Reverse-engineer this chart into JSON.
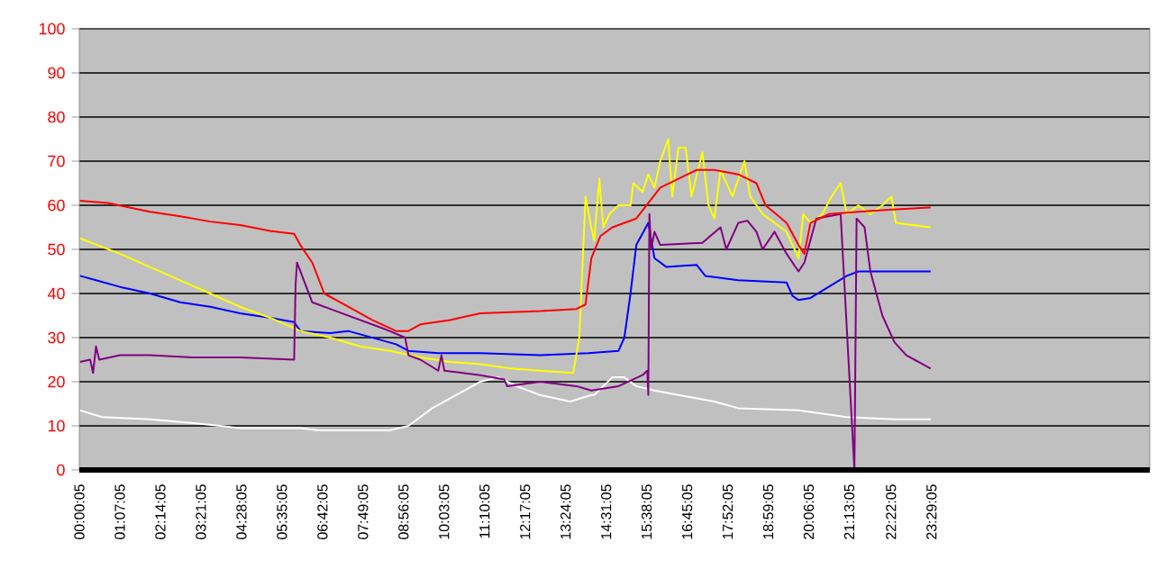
{
  "chart_data": {
    "type": "line",
    "xlim": [
      0,
      29.5
    ],
    "ylim": [
      0,
      100
    ],
    "yticks": [
      0,
      10,
      20,
      30,
      40,
      50,
      60,
      70,
      80,
      90,
      100
    ],
    "grid": "y",
    "marker": "none",
    "line_style": "solid",
    "xticks": [
      {
        "value": 0.0014,
        "label": "00:00:05"
      },
      {
        "value": 1.1181,
        "label": "01:07:05"
      },
      {
        "value": 2.2347,
        "label": "02:14:05"
      },
      {
        "value": 3.3514,
        "label": "03:21:05"
      },
      {
        "value": 4.4681,
        "label": "04:28:05"
      },
      {
        "value": 5.5847,
        "label": "05:35:05"
      },
      {
        "value": 6.7014,
        "label": "06:42:05"
      },
      {
        "value": 7.8181,
        "label": "07:49:05"
      },
      {
        "value": 8.9347,
        "label": "08:56:05"
      },
      {
        "value": 10.0514,
        "label": "10:03:05"
      },
      {
        "value": 11.1681,
        "label": "11:10:05"
      },
      {
        "value": 12.2847,
        "label": "12:17:05"
      },
      {
        "value": 13.4014,
        "label": "13:24:05"
      },
      {
        "value": 14.5181,
        "label": "14:31:05"
      },
      {
        "value": 15.6347,
        "label": "15:38:05"
      },
      {
        "value": 16.7514,
        "label": "16:45:05"
      },
      {
        "value": 17.8681,
        "label": "17:52:05"
      },
      {
        "value": 18.9847,
        "label": "18:59:05"
      },
      {
        "value": 20.1014,
        "label": "20:06:05"
      },
      {
        "value": 21.2181,
        "label": "21:13:05"
      },
      {
        "value": 22.3681,
        "label": "22:22:05"
      },
      {
        "value": 23.4847,
        "label": "23:29:05"
      }
    ],
    "series": [
      {
        "color": "#ffffff",
        "x": [
          0.02,
          0.63,
          1.95,
          3.28,
          4.43,
          6.09,
          6.58,
          8.57,
          9.07,
          9.73,
          10.39,
          11.05,
          11.55,
          12.04,
          12.7,
          13.53,
          14.11,
          14.19,
          14.69,
          15.02,
          15.35,
          15.85,
          16.51,
          17.5,
          18.16,
          19.82,
          21.15,
          22.46,
          23.46
        ],
        "values": [
          13.5,
          12,
          11.5,
          10.5,
          9.5,
          9.5,
          9,
          9,
          10,
          14,
          17,
          20,
          21,
          19,
          17,
          15.5,
          17,
          17,
          21,
          21,
          19,
          18,
          17,
          15.5,
          14,
          13.5,
          12,
          11.5,
          11.5
        ]
      },
      {
        "color": "#0000ff",
        "x": [
          0.02,
          0.46,
          1.12,
          1.95,
          2.78,
          3.61,
          4.43,
          5.26,
          5.92,
          6.09,
          6.91,
          7.41,
          8.07,
          8.73,
          9.07,
          9.89,
          11.05,
          12.7,
          14.03,
          14.86,
          15.02,
          15.19,
          15.35,
          15.68,
          15.85,
          16.18,
          17.01,
          17.25,
          18.16,
          19.49,
          19.65,
          19.82,
          20.15,
          20.65,
          21.15,
          21.47,
          23.46
        ],
        "values": [
          44,
          43,
          41.5,
          40,
          38,
          37,
          35.5,
          34.5,
          33.5,
          31.5,
          31,
          31.5,
          30,
          28.5,
          27,
          26.5,
          26.5,
          26,
          26.5,
          27,
          30,
          40,
          51,
          56,
          48,
          46,
          46.5,
          44,
          43,
          42.5,
          39.5,
          38.5,
          39,
          41.5,
          44,
          45,
          45
        ]
      },
      {
        "color": "#ffff00",
        "x": [
          0.02,
          1.12,
          1.95,
          2.78,
          3.61,
          4.43,
          5.26,
          6.09,
          6.91,
          7.74,
          8.57,
          9.4,
          10.22,
          11.05,
          11.88,
          12.7,
          13.61,
          13.78,
          13.95,
          14.11,
          14.19,
          14.33,
          14.44,
          14.61,
          14.86,
          15.19,
          15.27,
          15.52,
          15.68,
          15.85,
          16.01,
          16.23,
          16.34,
          16.51,
          16.71,
          16.87,
          17.17,
          17.34,
          17.5,
          17.67,
          18.0,
          18.33,
          18.49,
          18.83,
          19.16,
          19.49,
          19.82,
          19.95,
          20.15,
          20.48,
          20.73,
          20.98,
          21.15,
          21.47,
          21.8,
          22.13,
          22.38,
          22.5,
          23.46
        ],
        "values": [
          52.5,
          49,
          46,
          43,
          40,
          37,
          34.5,
          31.5,
          30,
          28,
          27,
          25.5,
          24.5,
          24,
          23,
          22.5,
          22,
          30,
          62,
          55,
          52,
          66,
          55,
          58,
          60,
          60,
          65,
          63,
          67,
          64,
          70,
          75,
          62,
          73,
          73,
          62,
          72,
          60,
          57,
          68,
          62,
          70,
          62,
          58,
          56,
          54,
          48,
          58,
          56,
          58,
          62,
          65,
          58,
          60,
          58,
          60,
          62,
          56,
          55
        ]
      },
      {
        "color": "#800080",
        "x": [
          0.02,
          0.3,
          0.38,
          0.46,
          0.55,
          1.12,
          1.95,
          3.11,
          4.43,
          5.92,
          5.96,
          6.0,
          6.42,
          7.08,
          7.74,
          8.4,
          8.98,
          9.07,
          9.4,
          9.89,
          9.98,
          10.06,
          11.05,
          11.71,
          11.79,
          12.7,
          13.7,
          14.11,
          14.86,
          15.52,
          15.65,
          15.68,
          15.71,
          15.76,
          15.85,
          16.01,
          17.17,
          17.67,
          17.83,
          18.16,
          18.41,
          18.66,
          18.83,
          19.16,
          19.49,
          19.82,
          19.98,
          20.31,
          20.98,
          21.36,
          21.42,
          21.64,
          21.8,
          22.13,
          22.46,
          22.79,
          23.46
        ],
        "values": [
          24.5,
          25,
          22,
          28,
          25,
          26,
          26,
          25.5,
          25.5,
          25,
          42,
          47,
          38,
          36,
          34,
          32,
          30,
          26,
          25,
          22.5,
          26,
          22.5,
          21.5,
          20.5,
          19,
          20,
          19,
          18,
          19,
          21.5,
          22.5,
          17,
          58,
          50,
          54,
          51,
          51.5,
          55,
          50,
          56,
          56.5,
          54,
          50,
          54,
          49,
          45,
          47,
          57,
          58,
          0,
          57,
          55,
          45,
          35,
          29,
          26,
          23
        ]
      },
      {
        "color": "#ff0000",
        "x": [
          0.02,
          0.79,
          1.95,
          2.78,
          3.61,
          4.43,
          5.26,
          5.92,
          6.09,
          6.42,
          6.75,
          7.41,
          8.07,
          8.73,
          9.07,
          9.4,
          10.22,
          11.05,
          12.7,
          13.7,
          13.95,
          14.11,
          14.36,
          14.69,
          15.35,
          15.68,
          16.01,
          16.51,
          17.01,
          17.5,
          18.16,
          18.66,
          18.91,
          19.49,
          19.82,
          19.98,
          20.15,
          20.65,
          21.47,
          22.3,
          23.46
        ],
        "values": [
          61,
          60.5,
          58.5,
          57.5,
          56.3,
          55.5,
          54.2,
          53.5,
          51,
          47,
          40,
          37,
          34,
          31.5,
          31.5,
          33,
          34,
          35.5,
          36,
          36.5,
          37.5,
          48,
          53,
          55,
          57,
          60.5,
          64,
          66,
          68,
          68,
          67,
          65,
          60,
          56,
          51,
          49,
          56,
          58,
          58.5,
          59,
          59.5
        ]
      }
    ]
  }
}
